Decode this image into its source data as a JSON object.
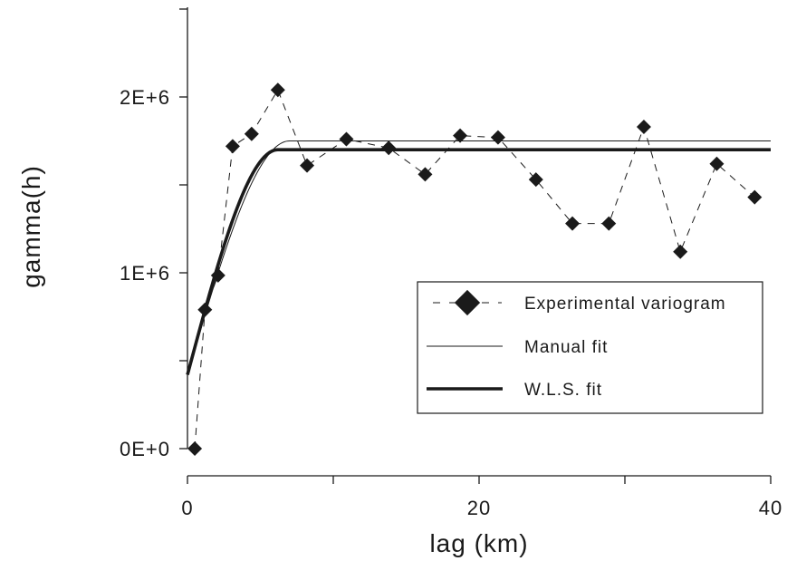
{
  "chart_data": {
    "type": "scatter",
    "xlabel": "lag (km)",
    "ylabel": "gamma(h)",
    "xlim": [
      0,
      40
    ],
    "ylim": [
      0,
      2500000
    ],
    "x_ticks": [
      {
        "value": 0,
        "label": "0"
      },
      {
        "value": 20,
        "label": "20"
      },
      {
        "value": 40,
        "label": "40"
      }
    ],
    "y_ticks": [
      {
        "value": 0,
        "label": "0E+0"
      },
      {
        "value": 1000000,
        "label": "1E+6"
      },
      {
        "value": 2000000,
        "label": "2E+6"
      }
    ],
    "x_minor_ticks": [
      10,
      30
    ],
    "y_minor_ticks": [
      500000,
      1500000,
      2500000
    ],
    "grid": false,
    "legend_position": "center-right",
    "series": [
      {
        "name": "Experimental variogram",
        "style": "dashed-diamond",
        "color": "#1a1a1a",
        "points": [
          {
            "x": 0.5,
            "y": 0
          },
          {
            "x": 1.2,
            "y": 790000
          },
          {
            "x": 2.1,
            "y": 985000
          },
          {
            "x": 3.1,
            "y": 1720000
          },
          {
            "x": 4.4,
            "y": 1790000
          },
          {
            "x": 6.2,
            "y": 2040000
          },
          {
            "x": 8.2,
            "y": 1610000
          },
          {
            "x": 10.9,
            "y": 1760000
          },
          {
            "x": 13.8,
            "y": 1710000
          },
          {
            "x": 16.3,
            "y": 1560000
          },
          {
            "x": 18.7,
            "y": 1780000
          },
          {
            "x": 21.3,
            "y": 1770000
          },
          {
            "x": 23.9,
            "y": 1530000
          },
          {
            "x": 26.4,
            "y": 1280000
          },
          {
            "x": 28.9,
            "y": 1280000
          },
          {
            "x": 31.3,
            "y": 1830000
          },
          {
            "x": 33.8,
            "y": 1120000
          },
          {
            "x": 36.3,
            "y": 1620000
          },
          {
            "x": 38.9,
            "y": 1430000
          }
        ]
      },
      {
        "name": "Manual fit",
        "style": "thin-line",
        "color": "#1a1a1a",
        "model": "spherical",
        "nugget": 420000,
        "sill": 1750000,
        "range": 7.0
      },
      {
        "name": "W.L.S. fit",
        "style": "thick-line",
        "color": "#1a1a1a",
        "model": "spherical",
        "nugget": 420000,
        "sill": 1700000,
        "range": 6.2
      }
    ]
  }
}
